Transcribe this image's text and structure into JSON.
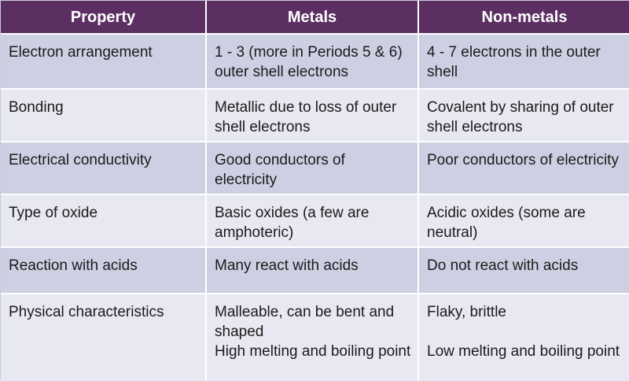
{
  "table": {
    "headers": [
      "Property",
      "Metals",
      "Non-metals"
    ],
    "rows": [
      [
        "Electron arrangement",
        "1 - 3 (more in Periods 5 & 6) outer shell electrons",
        "4 - 7 electrons in the outer shell"
      ],
      [
        "Bonding",
        "Metallic due to loss of outer shell electrons",
        "Covalent by sharing of outer shell electrons"
      ],
      [
        "Electrical conductivity",
        "Good conductors of electricity",
        "Poor conductors of electricity"
      ],
      [
        "Type of oxide",
        "Basic oxides (a few are amphoteric)",
        "Acidic oxides (some are neutral)"
      ],
      [
        "Reaction with acids",
        "Many react with acids",
        "Do not react with acids"
      ],
      [
        "Physical characteristics",
        "Malleable, can be bent and shaped\nHigh melting and boiling point",
        "Flaky, brittle\n\nLow melting and boiling point"
      ]
    ]
  },
  "colors": {
    "header_bg": "#5c2f63",
    "row_dark": "#cdd0e2",
    "row_light": "#e7e8f1"
  }
}
